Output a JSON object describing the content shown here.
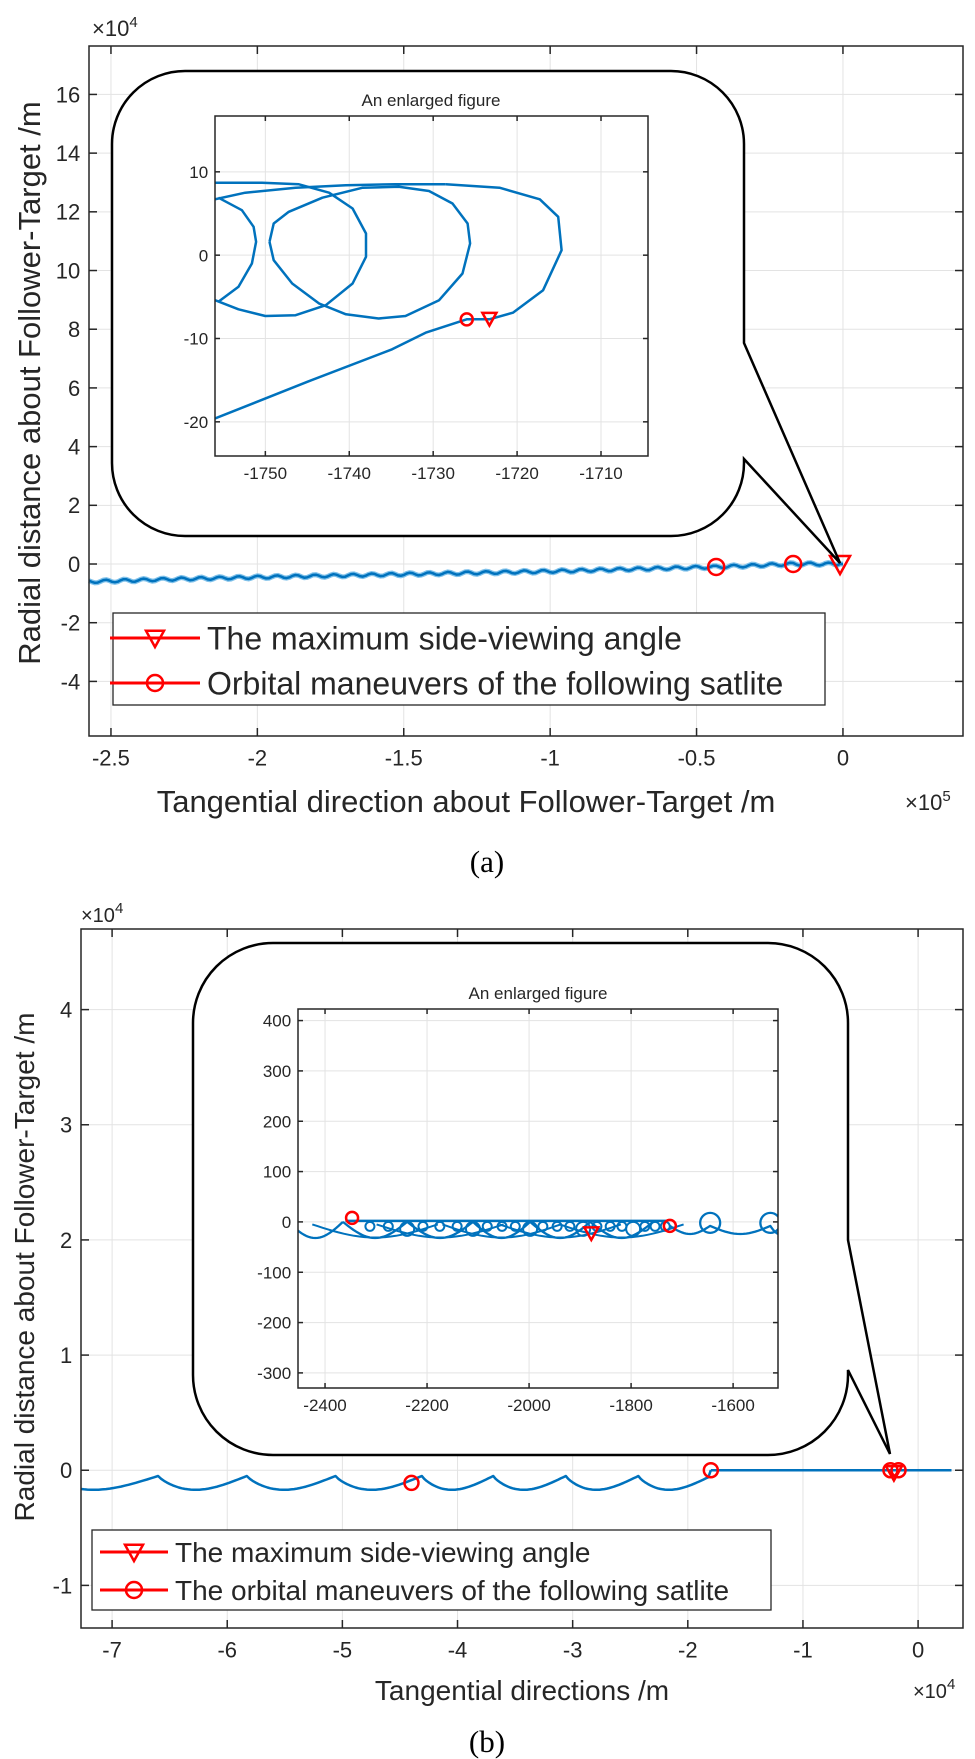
{
  "chart_data": [
    {
      "panel_label": "(a)",
      "type": "line",
      "xlabel": "Tangential direction about Follower-Target /m",
      "ylabel": "Radial distance about Follower-Target /m",
      "x_exponent": "×10^5",
      "y_exponent": "×10^4",
      "xlim": [
        -2.575,
        0.41
      ],
      "ylim": [
        -5.86,
        17.65
      ],
      "xticks": [
        "-2.5",
        "-2",
        "-1.5",
        "-1",
        "-0.5",
        "0"
      ],
      "yticks": [
        "-4",
        "-2",
        "0",
        "2",
        "4",
        "6",
        "8",
        "10",
        "12",
        "14",
        "16"
      ],
      "grid": true,
      "legend_position": "bottom-left",
      "legend": [
        "The maximum side-viewing angle",
        "Orbital maneuvers of the following satlite"
      ],
      "trajectory": [
        [
          -2.575,
          -0.6
        ],
        [
          -2.3,
          -0.52
        ],
        [
          -2.0,
          -0.45
        ],
        [
          -1.5,
          -0.35
        ],
        [
          -1.0,
          -0.25
        ],
        [
          -0.433,
          -0.1
        ],
        [
          -0.17,
          0.0
        ],
        [
          0.0,
          0.0
        ]
      ],
      "max_side_viewing_angle": [
        [
          -0.01,
          0.0
        ]
      ],
      "orbital_maneuvers": [
        [
          -0.433,
          -0.1
        ],
        [
          -0.17,
          0.0
        ]
      ],
      "inset": {
        "title": "An enlarged figure",
        "xlim": [
          -1756,
          -1704.4
        ],
        "ylim": [
          -24.1,
          16.7
        ],
        "xticks": [
          "-1750",
          "-1740",
          "-1730",
          "-1720",
          "-1710"
        ],
        "yticks": [
          "-20",
          "-10",
          "0",
          "10"
        ],
        "grid": true,
        "paths": [
          [
            [
              -1755.6,
              6.9
            ],
            [
              -1752.8,
              5.4
            ],
            [
              -1751.4,
              3.4
            ],
            [
              -1751.1,
              1.6
            ],
            [
              -1751.6,
              -1.0
            ],
            [
              -1753.2,
              -3.8
            ],
            [
              -1755.6,
              -5.6
            ]
          ],
          [
            [
              -1756,
              8.7
            ],
            [
              -1750.4,
              8.7
            ],
            [
              -1746.0,
              8.5
            ],
            [
              -1742.4,
              7.5
            ],
            [
              -1739.6,
              5.6
            ],
            [
              -1738.0,
              2.6
            ],
            [
              -1738.0,
              -0.2
            ],
            [
              -1739.6,
              -3.4
            ],
            [
              -1742.8,
              -6.0
            ],
            [
              -1746.4,
              -7.2
            ],
            [
              -1750.0,
              -7.3
            ],
            [
              -1753.2,
              -6.5
            ],
            [
              -1756,
              -5.4
            ]
          ],
          [
            [
              -1756,
              6.7
            ],
            [
              -1752.4,
              7.5
            ],
            [
              -1746.4,
              8.1
            ],
            [
              -1740.4,
              8.4
            ],
            [
              -1734.5,
              8.5
            ],
            [
              -1728.5,
              8.5
            ]
          ],
          [
            [
              -1749.5,
              1.6
            ],
            [
              -1749.0,
              3.8
            ],
            [
              -1747.2,
              5.2
            ],
            [
              -1743.2,
              6.9
            ],
            [
              -1738.4,
              8.1
            ],
            [
              -1734.1,
              8.2
            ],
            [
              -1730.5,
              7.7
            ],
            [
              -1727.7,
              6.2
            ],
            [
              -1725.9,
              3.8
            ],
            [
              -1725.6,
              1.4
            ],
            [
              -1726.5,
              -2.2
            ],
            [
              -1729.3,
              -5.4
            ],
            [
              -1733.3,
              -7.3
            ],
            [
              -1736.5,
              -7.6
            ],
            [
              -1740.4,
              -7.1
            ],
            [
              -1743.6,
              -5.8
            ],
            [
              -1746.8,
              -3.4
            ],
            [
              -1749.0,
              -0.6
            ],
            [
              -1749.5,
              1.6
            ]
          ],
          [
            [
              -1756,
              -19.6
            ],
            [
              -1745,
              -15.2
            ],
            [
              -1734.9,
              -11.3
            ],
            [
              -1730.9,
              -9.3
            ],
            [
              -1726.0,
              -7.7
            ],
            [
              -1723.3,
              -7.7
            ],
            [
              -1720.5,
              -6.9
            ],
            [
              -1716.9,
              -4.2
            ],
            [
              -1714.7,
              0.6
            ],
            [
              -1715.1,
              4.6
            ],
            [
              -1717.3,
              6.7
            ],
            [
              -1722.1,
              8.1
            ],
            [
              -1728.5,
              8.5
            ]
          ]
        ],
        "max_side_viewing_angle": [
          [
            -1723.3,
            -7.6
          ]
        ],
        "orbital_maneuvers": [
          [
            -1726.0,
            -7.7
          ]
        ]
      }
    },
    {
      "panel_label": "(b)",
      "type": "line",
      "xlabel": "Tangential directions /m",
      "ylabel": "Radial distance about Follower-Target /m",
      "x_exponent": "×10^4",
      "y_exponent": "×10^4",
      "xlim": [
        -7.27,
        0.39
      ],
      "ylim": [
        -1.37,
        4.7
      ],
      "xticks": [
        "-7",
        "-6",
        "-5",
        "-4",
        "-3",
        "-2",
        "-1",
        "0"
      ],
      "yticks": [
        "-1",
        "0",
        "1",
        "2",
        "3",
        "4"
      ],
      "grid": true,
      "legend_position": "bottom-left",
      "legend": [
        "The maximum side-viewing angle",
        "The orbital maneuvers of the following satlite"
      ],
      "trajectory_cusps_x": [
        -6.6,
        -5.83,
        -5.06,
        -4.31,
        -3.69,
        -3.06,
        -2.43
      ],
      "trajectory_cusp_y": -0.05,
      "trajectory_trough_y": -0.17,
      "trajectory_flat": [
        [
          -1.8,
          0.0
        ],
        [
          0.29,
          0.0
        ]
      ],
      "max_side_viewing_angle": [
        [
          -0.21,
          -0.02
        ]
      ],
      "orbital_maneuvers": [
        [
          -4.4,
          -0.11
        ],
        [
          -1.8,
          0.0
        ],
        [
          -0.24,
          0.0
        ],
        [
          -0.17,
          0.0
        ]
      ],
      "inset": {
        "title": "An enlarged figure",
        "xlim": [
          -2453,
          -1512
        ],
        "ylim": [
          -330,
          423
        ],
        "xticks": [
          "-2400",
          "-2200",
          "-2000",
          "-1800",
          "-1600"
        ],
        "yticks": [
          "-300",
          "-200",
          "-100",
          "0",
          "100",
          "200",
          "300",
          "400"
        ],
        "grid": true,
        "top_line": [
          [
            -2360,
            2
          ],
          [
            -1730,
            2
          ]
        ],
        "small_loops_x": [
          -2312,
          -2276,
          -2239,
          -2208,
          -2175,
          -2141,
          -2110,
          -2082,
          -2053,
          -2027,
          -1998,
          -1973,
          -1945,
          -1920,
          -1894,
          -1867,
          -1841,
          -1818,
          -1796,
          -1773,
          -1753,
          -1733
        ],
        "arc_cusps_x": [
          -2365,
          -2239,
          -2110,
          -1998,
          -1880,
          -1757
        ],
        "arc_bottom_y": -32,
        "big_loops_x": [
          -1645,
          -1527
        ],
        "baseline_y": -24,
        "max_side_viewing_angle": [
          [
            -1878,
            -22
          ]
        ],
        "orbital_maneuvers": [
          [
            -2347,
            8
          ],
          [
            -1724,
            -8
          ]
        ]
      }
    }
  ],
  "colors": {
    "trajectory": "#0072BD",
    "markers": "#FF0000",
    "grid": "#E3E3E3",
    "axes": "#262626"
  }
}
